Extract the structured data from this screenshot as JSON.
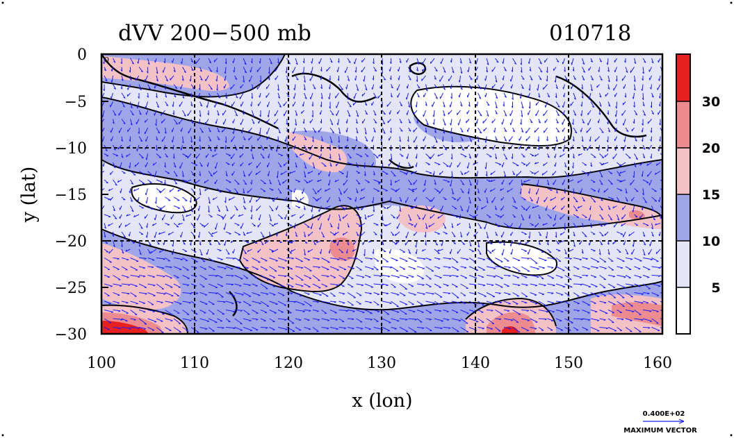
{
  "title": "dVV 200−500 mb",
  "date_code": "010718",
  "corner_label": "0",
  "axes": {
    "x": {
      "label": "x (lon)",
      "ticks": [
        "100",
        "110",
        "120",
        "130",
        "140",
        "150",
        "160"
      ]
    },
    "y": {
      "label": "y (lat)",
      "ticks": [
        "0",
        "−5",
        "−10",
        "−15",
        "−20",
        "−25",
        "−30"
      ]
    }
  },
  "colorbar": {
    "labels": [
      "30",
      "20",
      "15",
      "10",
      "5"
    ],
    "colors": [
      "#ffffff",
      "#e4e6f8",
      "#9ea6e8",
      "#f4c2c4",
      "#ec8c8e",
      "#e82020"
    ]
  },
  "vector_legend": {
    "value": "0.400E+02",
    "label": "MAXIMUM VECTOR"
  },
  "colors": {
    "vector": "#1a1aff",
    "contour": "#000000"
  },
  "chart_data": {
    "type": "heatmap",
    "title": "dVV 200−500 mb",
    "xlabel": "x (lon)",
    "ylabel": "y (lat)",
    "xlim": [
      100,
      160
    ],
    "ylim": [
      -30,
      0
    ],
    "color_levels": [
      5,
      10,
      15,
      20,
      30
    ],
    "grid": true,
    "vectors": true,
    "max_vector": "0.400E+02"
  }
}
